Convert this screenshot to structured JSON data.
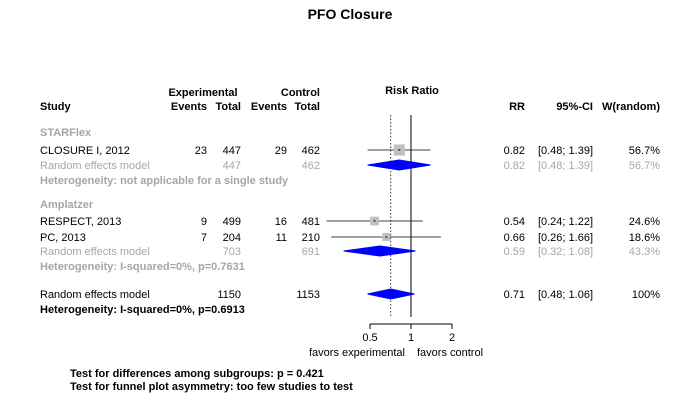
{
  "chart_data": {
    "type": "forest",
    "title": "PFO Closure",
    "headers": {
      "study": "Study",
      "experimental": "Experimental",
      "control": "Control",
      "events": "Events",
      "total": "Total",
      "measure": "Risk Ratio",
      "rr": "RR",
      "ci": "95%-CI",
      "weight": "W(random)"
    },
    "axis": {
      "scale": "log",
      "ticks": [
        0.5,
        1,
        2
      ],
      "tick_labels": [
        "0.5",
        "1",
        "2"
      ],
      "range": [
        0.3,
        2.75
      ],
      "label_left": "favors experimental",
      "label_right": "favors control",
      "reference_line": 1,
      "dotted_line": 0.71
    },
    "groups": [
      {
        "name": "STARFlex",
        "studies": [
          {
            "study": "CLOSURE I, 2012",
            "e_events": "23",
            "e_total": "447",
            "c_events": "29",
            "c_total": "462",
            "rr": 0.82,
            "lower": 0.48,
            "upper": 1.39,
            "rr_text": "0.82",
            "ci_text": "[0.48; 1.39]",
            "weight_text": "56.7%",
            "weight": 56.7
          }
        ],
        "pooled": {
          "label": "Random effects model",
          "e_total": "447",
          "c_total": "462",
          "rr": 0.82,
          "lower": 0.48,
          "upper": 1.39,
          "rr_text": "0.82",
          "ci_text": "[0.48; 1.39]",
          "weight_text": "56.7%"
        },
        "heterogeneity": "Heterogeneity: not applicable for a single study"
      },
      {
        "name": "Amplatzer",
        "studies": [
          {
            "study": "RESPECT, 2013",
            "e_events": "9",
            "e_total": "499",
            "c_events": "16",
            "c_total": "481",
            "rr": 0.54,
            "lower": 0.24,
            "upper": 1.22,
            "rr_text": "0.54",
            "ci_text": "[0.24; 1.22]",
            "weight_text": "24.6%",
            "weight": 24.6
          },
          {
            "study": "PC, 2013",
            "e_events": "7",
            "e_total": "204",
            "c_events": "11",
            "c_total": "210",
            "rr": 0.66,
            "lower": 0.26,
            "upper": 1.66,
            "rr_text": "0.66",
            "ci_text": "[0.26; 1.66]",
            "weight_text": "18.6%",
            "weight": 18.6
          }
        ],
        "pooled": {
          "label": "Random effects model",
          "e_total": "703",
          "c_total": "691",
          "rr": 0.59,
          "lower": 0.32,
          "upper": 1.08,
          "rr_text": "0.59",
          "ci_text": "[0.32; 1.08]",
          "weight_text": "43.3%"
        },
        "heterogeneity": "Heterogeneity: I-squared=0%, p=0.7631"
      }
    ],
    "overall": {
      "label": "Random effects model",
      "e_total": "1150",
      "c_total": "1153",
      "rr": 0.71,
      "lower": 0.48,
      "upper": 1.06,
      "rr_text": "0.71",
      "ci_text": "[0.48; 1.06]",
      "weight_text": "100%"
    },
    "overall_heterogeneity": "Heterogeneity: I-squared=0%, p=0.6913",
    "footnotes": [
      "Test for differences among subgroups: p = 0.421",
      "Test for funnel plot asymmetry: too few studies to test"
    ],
    "colors": {
      "subgroup_text": "#a6a6a6",
      "diamond": "#0000ff",
      "square": "#c0c0c0",
      "text": "#000000"
    }
  }
}
